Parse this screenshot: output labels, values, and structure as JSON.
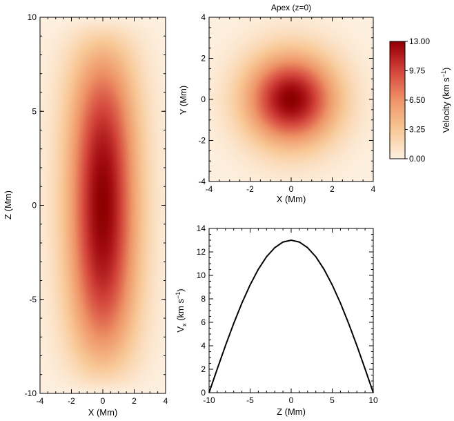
{
  "chart_data": [
    {
      "type": "heatmap",
      "name": "side-view",
      "xlabel": "X (Mm)",
      "ylabel": "Z (Mm)",
      "xlim": [
        -4,
        4
      ],
      "ylim": [
        -10,
        10
      ],
      "xticks": [
        "-4",
        "-2",
        "0",
        "2",
        "4"
      ],
      "yticks": [
        "-10",
        "-5",
        "0",
        "5",
        "10"
      ],
      "peak_value": 13.0,
      "peak_at": [
        0,
        0
      ],
      "radial_decay_scale_x": 2.2,
      "zero_at_z": [
        -10,
        10
      ]
    },
    {
      "type": "heatmap",
      "name": "apex-cross-section",
      "title": "Apex (z=0)",
      "xlabel": "X (Mm)",
      "ylabel": "Y (Mm)",
      "xlim": [
        -4,
        4
      ],
      "ylim": [
        -4,
        4
      ],
      "xticks": [
        "-4",
        "-2",
        "0",
        "2",
        "4"
      ],
      "yticks": [
        "-4",
        "-2",
        "0",
        "2",
        "4"
      ],
      "peak_value": 13.0,
      "peak_at": [
        0,
        0
      ],
      "radial_decay_scale": 2.2
    },
    {
      "type": "colorbar",
      "label": "Velocity (km s",
      "label_sup": "−1",
      "label_close": ")",
      "range": [
        0,
        13
      ],
      "tick_labels": [
        "13.00",
        "9.75",
        "6.50",
        "3.25",
        "0.00"
      ],
      "tick_values": [
        13,
        9.75,
        6.5,
        3.25,
        0
      ],
      "colors": [
        "#fdf0e0",
        "#f8c896",
        "#ee9467",
        "#d3443b",
        "#a50e13",
        "#8c0000"
      ]
    },
    {
      "type": "line",
      "name": "vx-profile",
      "xlabel": "Z (Mm)",
      "ylabel_main": "V",
      "ylabel_sub": "x",
      "ylabel_rest": " (km s",
      "ylabel_sup": "−1",
      "ylabel_close": ")",
      "xlim": [
        -10,
        10
      ],
      "ylim": [
        0,
        14
      ],
      "xticks": [
        "-10",
        "-5",
        "0",
        "5",
        "10"
      ],
      "yticks": [
        "0",
        "2",
        "4",
        "6",
        "8",
        "10",
        "12",
        "14"
      ],
      "x": [
        -10,
        -9,
        -8,
        -7,
        -6,
        -5,
        -4,
        -3,
        -2,
        -1,
        0,
        1,
        2,
        3,
        4,
        5,
        6,
        7,
        8,
        9,
        10
      ],
      "y": [
        0,
        2.03,
        4.02,
        5.9,
        7.64,
        9.19,
        10.52,
        11.59,
        12.36,
        12.84,
        13.0,
        12.84,
        12.36,
        11.59,
        10.52,
        9.19,
        7.64,
        5.9,
        4.02,
        2.03,
        0
      ],
      "line_color": "#000000"
    }
  ]
}
